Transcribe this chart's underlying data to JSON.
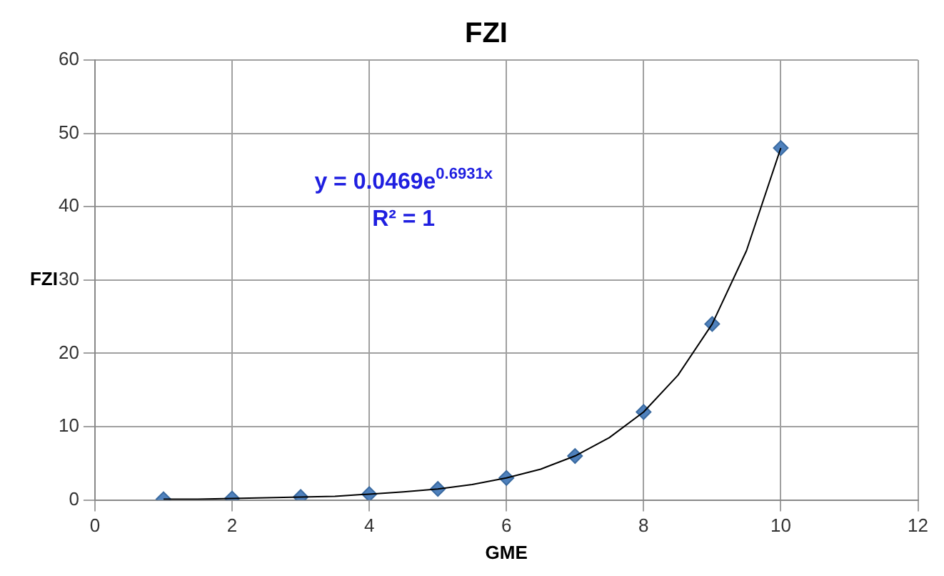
{
  "chart_data": {
    "type": "scatter",
    "title": "FZI",
    "xlabel": "GME",
    "ylabel": "FZI",
    "xlim": [
      0,
      12
    ],
    "xticks": [
      0,
      2,
      4,
      6,
      8,
      10,
      12
    ],
    "ylim": [
      0,
      60
    ],
    "yticks": [
      0,
      10,
      20,
      30,
      40,
      50,
      60
    ],
    "grid": true,
    "legend": false,
    "annotations": [
      "y = 0.0469e$^{0.6931x}$",
      "R² = 1"
    ],
    "series": [
      {
        "color": "#4f81bd",
        "marker": "diamond",
        "x": [
          1,
          2,
          3,
          4,
          5,
          6,
          7,
          8,
          9,
          10
        ],
        "values": [
          0.1,
          0.2,
          0.4,
          0.8,
          1.5,
          3,
          6,
          12,
          24,
          48
        ]
      },
      {
        "type": "line",
        "color": "#000000",
        "marker": "none",
        "x": [
          1,
          1.5,
          2,
          2.5,
          3,
          3.5,
          4,
          4.5,
          5,
          5.5,
          6,
          6.5,
          7,
          7.5,
          8,
          8.5,
          9,
          9.5,
          10
        ],
        "values": [
          0.1,
          0.1,
          0.2,
          0.3,
          0.4,
          0.5,
          0.8,
          1.1,
          1.5,
          2.1,
          3,
          4.2,
          6,
          8.5,
          12,
          17,
          24,
          34,
          48
        ]
      }
    ]
  }
}
